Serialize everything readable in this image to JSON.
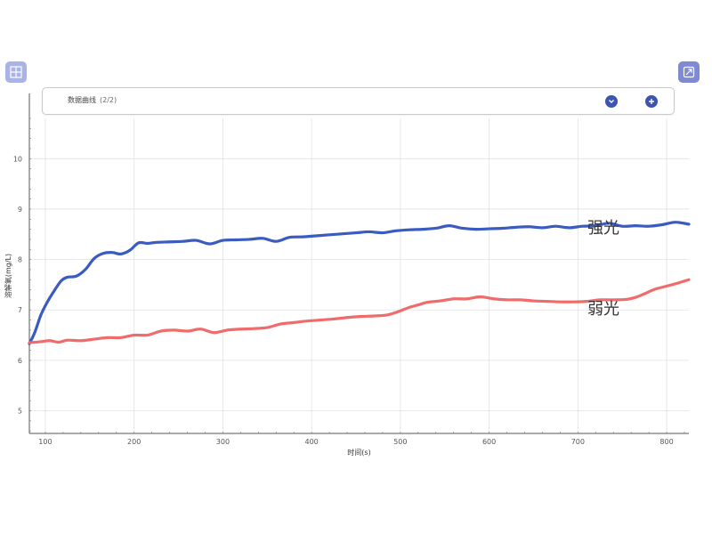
{
  "toolbar": {
    "title": "数据曲线",
    "counter": "(2/2)"
  },
  "icons": {
    "left_corner": "grid-icon",
    "right_corner": "export-icon",
    "down": "chevron-down-icon",
    "add": "plus-icon"
  },
  "colors": {
    "strong": "#3a5bbf",
    "weak": "#f06b6b",
    "button": "#3b55b0"
  },
  "chart_data": {
    "type": "line",
    "xlabel": "时间(s)",
    "ylabel": "溶解氧(mg/L)",
    "xlim": [
      82,
      825
    ],
    "ylim": [
      4.55,
      10.8
    ],
    "xticks": [
      100,
      200,
      300,
      400,
      500,
      600,
      700,
      800
    ],
    "xtick_labels": [
      "100",
      "200",
      "300",
      "400",
      "500",
      "600",
      "700",
      "800"
    ],
    "yticks": [
      5,
      6,
      7,
      8,
      9,
      10
    ],
    "ytick_labels": [
      "5",
      "6",
      "7",
      "8",
      "9",
      "10"
    ],
    "grid": true,
    "series": [
      {
        "name": "强光",
        "color": "#3a5bbf",
        "points": [
          [
            82,
            6.33
          ],
          [
            88,
            6.55
          ],
          [
            95,
            6.9
          ],
          [
            102,
            7.15
          ],
          [
            110,
            7.38
          ],
          [
            118,
            7.58
          ],
          [
            125,
            7.65
          ],
          [
            135,
            7.67
          ],
          [
            145,
            7.8
          ],
          [
            155,
            8.02
          ],
          [
            165,
            8.12
          ],
          [
            175,
            8.14
          ],
          [
            185,
            8.11
          ],
          [
            195,
            8.18
          ],
          [
            205,
            8.33
          ],
          [
            215,
            8.32
          ],
          [
            225,
            8.34
          ],
          [
            240,
            8.35
          ],
          [
            255,
            8.36
          ],
          [
            270,
            8.38
          ],
          [
            285,
            8.31
          ],
          [
            300,
            8.38
          ],
          [
            315,
            8.39
          ],
          [
            330,
            8.4
          ],
          [
            345,
            8.42
          ],
          [
            360,
            8.36
          ],
          [
            375,
            8.44
          ],
          [
            390,
            8.45
          ],
          [
            405,
            8.47
          ],
          [
            420,
            8.49
          ],
          [
            435,
            8.51
          ],
          [
            450,
            8.53
          ],
          [
            465,
            8.55
          ],
          [
            480,
            8.53
          ],
          [
            495,
            8.57
          ],
          [
            510,
            8.59
          ],
          [
            525,
            8.6
          ],
          [
            540,
            8.62
          ],
          [
            555,
            8.67
          ],
          [
            570,
            8.62
          ],
          [
            585,
            8.6
          ],
          [
            600,
            8.61
          ],
          [
            615,
            8.62
          ],
          [
            630,
            8.64
          ],
          [
            645,
            8.65
          ],
          [
            660,
            8.63
          ],
          [
            675,
            8.66
          ],
          [
            690,
            8.63
          ],
          [
            705,
            8.66
          ],
          [
            720,
            8.67
          ],
          [
            735,
            8.72
          ],
          [
            750,
            8.66
          ],
          [
            765,
            8.67
          ],
          [
            780,
            8.66
          ],
          [
            795,
            8.69
          ],
          [
            810,
            8.74
          ],
          [
            825,
            8.7
          ]
        ]
      },
      {
        "name": "弱光",
        "color": "#f06b6b",
        "points": [
          [
            82,
            6.35
          ],
          [
            95,
            6.37
          ],
          [
            105,
            6.39
          ],
          [
            115,
            6.36
          ],
          [
            125,
            6.4
          ],
          [
            140,
            6.39
          ],
          [
            155,
            6.42
          ],
          [
            170,
            6.45
          ],
          [
            185,
            6.45
          ],
          [
            200,
            6.5
          ],
          [
            215,
            6.5
          ],
          [
            230,
            6.58
          ],
          [
            245,
            6.6
          ],
          [
            260,
            6.58
          ],
          [
            275,
            6.62
          ],
          [
            290,
            6.55
          ],
          [
            305,
            6.6
          ],
          [
            320,
            6.62
          ],
          [
            335,
            6.63
          ],
          [
            350,
            6.65
          ],
          [
            365,
            6.72
          ],
          [
            380,
            6.75
          ],
          [
            395,
            6.78
          ],
          [
            410,
            6.8
          ],
          [
            425,
            6.82
          ],
          [
            440,
            6.85
          ],
          [
            455,
            6.87
          ],
          [
            470,
            6.88
          ],
          [
            485,
            6.9
          ],
          [
            495,
            6.95
          ],
          [
            510,
            7.05
          ],
          [
            520,
            7.1
          ],
          [
            530,
            7.15
          ],
          [
            545,
            7.18
          ],
          [
            560,
            7.22
          ],
          [
            575,
            7.22
          ],
          [
            590,
            7.26
          ],
          [
            605,
            7.22
          ],
          [
            620,
            7.2
          ],
          [
            635,
            7.2
          ],
          [
            650,
            7.18
          ],
          [
            665,
            7.17
          ],
          [
            680,
            7.16
          ],
          [
            695,
            7.16
          ],
          [
            710,
            7.17
          ],
          [
            725,
            7.2
          ],
          [
            740,
            7.2
          ],
          [
            755,
            7.21
          ],
          [
            765,
            7.25
          ],
          [
            775,
            7.32
          ],
          [
            785,
            7.4
          ],
          [
            795,
            7.45
          ],
          [
            810,
            7.52
          ],
          [
            825,
            7.6
          ]
        ]
      }
    ]
  }
}
